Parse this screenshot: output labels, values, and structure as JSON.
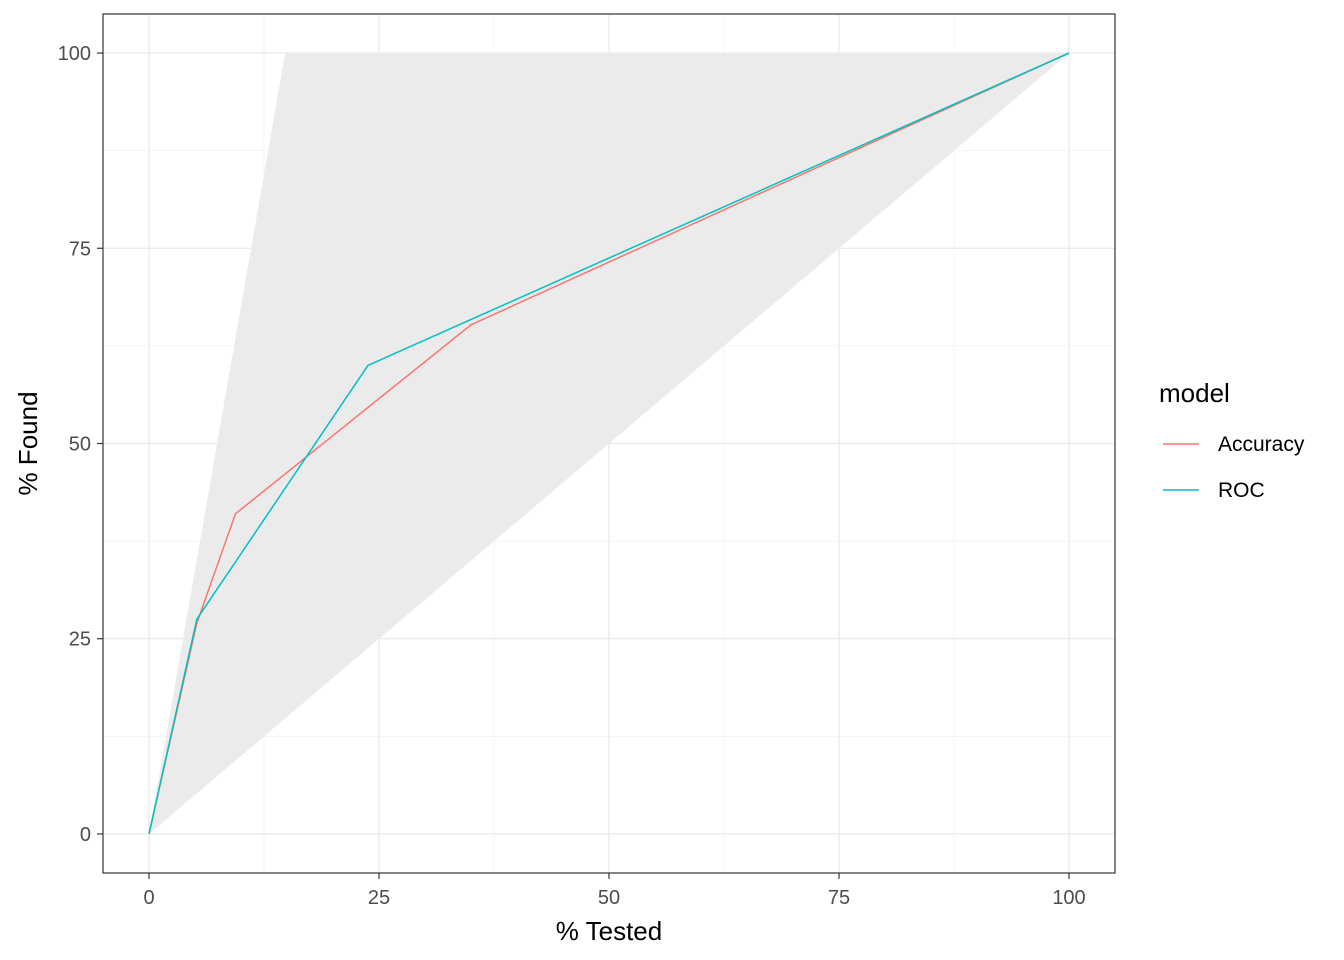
{
  "chart_data": {
    "type": "line",
    "xlabel": "% Tested",
    "ylabel": "% Found",
    "xlim": [
      -5,
      105
    ],
    "ylim": [
      -5,
      105
    ],
    "x_ticks": [
      0,
      25,
      50,
      75,
      100
    ],
    "y_ticks": [
      0,
      25,
      50,
      75,
      100
    ],
    "x_tick_labels": [
      "0",
      "25",
      "50",
      "75",
      "100"
    ],
    "y_tick_labels": [
      "0",
      "25",
      "50",
      "75",
      "100"
    ],
    "grid": true,
    "reference_region": {
      "description_free": true,
      "upper": [
        [
          0,
          0
        ],
        [
          14.8,
          100
        ],
        [
          100,
          100
        ]
      ],
      "lower": [
        [
          0,
          0
        ],
        [
          100,
          100
        ]
      ],
      "color": "#ebebeb"
    },
    "legend": {
      "title": "model",
      "position": "right"
    },
    "series": [
      {
        "name": "Accuracy",
        "color": "#F8766D",
        "x": [
          0,
          5.2,
          9.4,
          35.0,
          100
        ],
        "y": [
          0,
          27.0,
          41.0,
          65.2,
          100
        ]
      },
      {
        "name": "ROC",
        "color": "#00BFC4",
        "x": [
          0,
          5.2,
          23.8,
          100
        ],
        "y": [
          0,
          27.5,
          60.0,
          100
        ]
      }
    ]
  }
}
